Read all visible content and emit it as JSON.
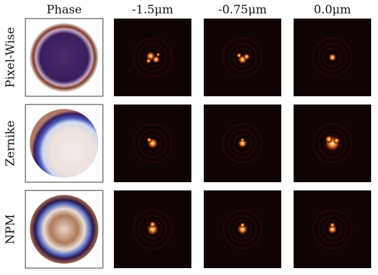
{
  "columns": [
    "Phase",
    "-1.5μm",
    "-0.75μm",
    "0.0μm"
  ],
  "rows": [
    "Pixel-Wise",
    "Zernike",
    "NPM"
  ]
}
